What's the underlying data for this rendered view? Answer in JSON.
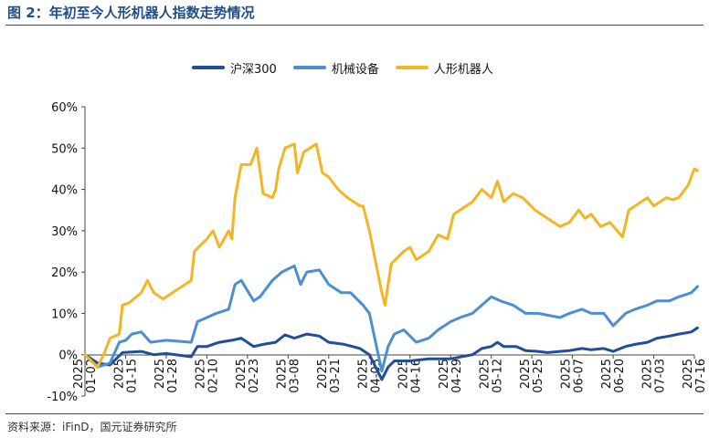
{
  "header": {
    "title": "图 2：年初至今人形机器人指数走势情况"
  },
  "footer": {
    "source": "资料来源：iFinD，国元证券研究所"
  },
  "colors": {
    "title": "#1f4e8c",
    "hs300": "#1f4e9b",
    "machinery": "#4a8fd4",
    "humanoid": "#f2b524"
  },
  "chart_data": {
    "type": "line",
    "ylabel": "",
    "xlabel": "",
    "ylim": [
      -10,
      60
    ],
    "yticks": [
      "60%",
      "50%",
      "40%",
      "30%",
      "20%",
      "10%",
      "0%",
      "-10%"
    ],
    "yticks_values": [
      60,
      50,
      40,
      30,
      20,
      10,
      0,
      -10
    ],
    "xticks": [
      "2025-01-02",
      "2025-01-15",
      "2025-01-28",
      "2025-02-10",
      "2025-02-23",
      "2025-03-08",
      "2025-03-21",
      "2025-04-03",
      "2025-04-16",
      "2025-04-29",
      "2025-05-12",
      "2025-05-25",
      "2025-06-07",
      "2025-06-20",
      "2025-07-03",
      "2025-07-16"
    ],
    "grid": false,
    "legend_position": "top",
    "series": [
      {
        "name": "沪深300",
        "color": "#1f4e9b",
        "points": [
          [
            "2025-01-02",
            0
          ],
          [
            "2025-01-06",
            -2
          ],
          [
            "2025-01-10",
            -2.5
          ],
          [
            "2025-01-14",
            0.5
          ],
          [
            "2025-01-20",
            0.8
          ],
          [
            "2025-01-24",
            0
          ],
          [
            "2025-01-28",
            0.3
          ],
          [
            "2025-02-05",
            -0.5
          ],
          [
            "2025-02-07",
            2
          ],
          [
            "2025-02-10",
            2
          ],
          [
            "2025-02-14",
            3
          ],
          [
            "2025-02-18",
            3.5
          ],
          [
            "2025-02-21",
            4
          ],
          [
            "2025-02-25",
            2
          ],
          [
            "2025-02-28",
            2.5
          ],
          [
            "2025-03-04",
            3
          ],
          [
            "2025-03-07",
            4.8
          ],
          [
            "2025-03-10",
            4
          ],
          [
            "2025-03-14",
            5
          ],
          [
            "2025-03-18",
            4.5
          ],
          [
            "2025-03-21",
            3
          ],
          [
            "2025-03-26",
            2.5
          ],
          [
            "2025-03-31",
            1.5
          ],
          [
            "2025-04-03",
            0
          ],
          [
            "2025-04-07",
            -6
          ],
          [
            "2025-04-09",
            -3
          ],
          [
            "2025-04-11",
            -1.5
          ],
          [
            "2025-04-16",
            -1.5
          ],
          [
            "2025-04-22",
            -1
          ],
          [
            "2025-04-29",
            -1
          ],
          [
            "2025-05-06",
            0
          ],
          [
            "2025-05-09",
            1.5
          ],
          [
            "2025-05-12",
            2
          ],
          [
            "2025-05-14",
            3
          ],
          [
            "2025-05-16",
            2
          ],
          [
            "2025-05-20",
            2
          ],
          [
            "2025-05-23",
            1
          ],
          [
            "2025-05-27",
            0.8
          ],
          [
            "2025-05-30",
            0.5
          ],
          [
            "2025-06-03",
            0.8
          ],
          [
            "2025-06-06",
            1
          ],
          [
            "2025-06-10",
            1.5
          ],
          [
            "2025-06-13",
            1.2
          ],
          [
            "2025-06-17",
            1.5
          ],
          [
            "2025-06-20",
            0.8
          ],
          [
            "2025-06-24",
            2
          ],
          [
            "2025-06-27",
            2.5
          ],
          [
            "2025-07-01",
            3
          ],
          [
            "2025-07-04",
            4
          ],
          [
            "2025-07-08",
            4.5
          ],
          [
            "2025-07-11",
            5
          ],
          [
            "2025-07-15",
            5.5
          ],
          [
            "2025-07-17",
            6.5
          ]
        ]
      },
      {
        "name": "机械设备",
        "color": "#4a8fd4",
        "points": [
          [
            "2025-01-02",
            0
          ],
          [
            "2025-01-06",
            -3
          ],
          [
            "2025-01-10",
            -2
          ],
          [
            "2025-01-13",
            3
          ],
          [
            "2025-01-15",
            3.5
          ],
          [
            "2025-01-17",
            5
          ],
          [
            "2025-01-20",
            5.5
          ],
          [
            "2025-01-23",
            3
          ],
          [
            "2025-01-28",
            3.5
          ],
          [
            "2025-02-05",
            3
          ],
          [
            "2025-02-07",
            8
          ],
          [
            "2025-02-10",
            9
          ],
          [
            "2025-02-13",
            10
          ],
          [
            "2025-02-17",
            11
          ],
          [
            "2025-02-19",
            17
          ],
          [
            "2025-02-21",
            18
          ],
          [
            "2025-02-25",
            13
          ],
          [
            "2025-02-27",
            14
          ],
          [
            "2025-03-03",
            18
          ],
          [
            "2025-03-06",
            20
          ],
          [
            "2025-03-10",
            21.5
          ],
          [
            "2025-03-12",
            17
          ],
          [
            "2025-03-14",
            20
          ],
          [
            "2025-03-18",
            20.5
          ],
          [
            "2025-03-21",
            17
          ],
          [
            "2025-03-25",
            15
          ],
          [
            "2025-03-28",
            15
          ],
          [
            "2025-04-01",
            12
          ],
          [
            "2025-04-03",
            10
          ],
          [
            "2025-04-07",
            -4
          ],
          [
            "2025-04-09",
            2
          ],
          [
            "2025-04-11",
            5
          ],
          [
            "2025-04-14",
            6
          ],
          [
            "2025-04-18",
            3
          ],
          [
            "2025-04-22",
            4
          ],
          [
            "2025-04-25",
            6
          ],
          [
            "2025-04-29",
            8
          ],
          [
            "2025-05-02",
            9
          ],
          [
            "2025-05-06",
            10
          ],
          [
            "2025-05-09",
            12
          ],
          [
            "2025-05-12",
            14
          ],
          [
            "2025-05-15",
            13
          ],
          [
            "2025-05-19",
            12
          ],
          [
            "2025-05-23",
            10
          ],
          [
            "2025-05-27",
            10
          ],
          [
            "2025-06-03",
            9
          ],
          [
            "2025-06-06",
            10
          ],
          [
            "2025-06-10",
            11
          ],
          [
            "2025-06-13",
            10
          ],
          [
            "2025-06-17",
            10
          ],
          [
            "2025-06-20",
            7
          ],
          [
            "2025-06-24",
            10
          ],
          [
            "2025-06-27",
            11
          ],
          [
            "2025-07-01",
            12
          ],
          [
            "2025-07-04",
            13
          ],
          [
            "2025-07-08",
            13
          ],
          [
            "2025-07-11",
            14
          ],
          [
            "2025-07-15",
            15
          ],
          [
            "2025-07-17",
            16.5
          ]
        ]
      },
      {
        "name": "人形机器人",
        "color": "#f2b524",
        "points": [
          [
            "2025-01-02",
            0
          ],
          [
            "2025-01-06",
            -3
          ],
          [
            "2025-01-08",
            0
          ],
          [
            "2025-01-10",
            4
          ],
          [
            "2025-01-13",
            5
          ],
          [
            "2025-01-14",
            12
          ],
          [
            "2025-01-16",
            12.5
          ],
          [
            "2025-01-20",
            15
          ],
          [
            "2025-01-22",
            18
          ],
          [
            "2025-01-24",
            15
          ],
          [
            "2025-01-27",
            13.5
          ],
          [
            "2025-02-05",
            18
          ],
          [
            "2025-02-06",
            25
          ],
          [
            "2025-02-10",
            28
          ],
          [
            "2025-02-12",
            30
          ],
          [
            "2025-02-14",
            26
          ],
          [
            "2025-02-17",
            30
          ],
          [
            "2025-02-18",
            28
          ],
          [
            "2025-02-19",
            38
          ],
          [
            "2025-02-21",
            46
          ],
          [
            "2025-02-24",
            46
          ],
          [
            "2025-02-26",
            50
          ],
          [
            "2025-02-28",
            39
          ],
          [
            "2025-03-03",
            38
          ],
          [
            "2025-03-04",
            40
          ],
          [
            "2025-03-05",
            45
          ],
          [
            "2025-03-07",
            50
          ],
          [
            "2025-03-10",
            51
          ],
          [
            "2025-03-11",
            44
          ],
          [
            "2025-03-13",
            49
          ],
          [
            "2025-03-17",
            51
          ],
          [
            "2025-03-19",
            44
          ],
          [
            "2025-03-21",
            43
          ],
          [
            "2025-03-24",
            40
          ],
          [
            "2025-03-27",
            38
          ],
          [
            "2025-03-31",
            36
          ],
          [
            "2025-04-01",
            36
          ],
          [
            "2025-04-03",
            30
          ],
          [
            "2025-04-07",
            15
          ],
          [
            "2025-04-08",
            12
          ],
          [
            "2025-04-10",
            22
          ],
          [
            "2025-04-14",
            25
          ],
          [
            "2025-04-16",
            26
          ],
          [
            "2025-04-18",
            23
          ],
          [
            "2025-04-22",
            25
          ],
          [
            "2025-04-25",
            29
          ],
          [
            "2025-04-28",
            28
          ],
          [
            "2025-04-30",
            34
          ],
          [
            "2025-05-06",
            37
          ],
          [
            "2025-05-09",
            40
          ],
          [
            "2025-05-12",
            38
          ],
          [
            "2025-05-14",
            42
          ],
          [
            "2025-05-16",
            37
          ],
          [
            "2025-05-19",
            39
          ],
          [
            "2025-05-22",
            38
          ],
          [
            "2025-05-26",
            35
          ],
          [
            "2025-05-30",
            33
          ],
          [
            "2025-06-03",
            31
          ],
          [
            "2025-06-06",
            32
          ],
          [
            "2025-06-09",
            35
          ],
          [
            "2025-06-11",
            33
          ],
          [
            "2025-06-13",
            34
          ],
          [
            "2025-06-16",
            31
          ],
          [
            "2025-06-19",
            32
          ],
          [
            "2025-06-23",
            28.5
          ],
          [
            "2025-06-25",
            35
          ],
          [
            "2025-06-27",
            36
          ],
          [
            "2025-07-01",
            38
          ],
          [
            "2025-07-03",
            36
          ],
          [
            "2025-07-07",
            38
          ],
          [
            "2025-07-09",
            37.5
          ],
          [
            "2025-07-11",
            38
          ],
          [
            "2025-07-14",
            41
          ],
          [
            "2025-07-16",
            45
          ],
          [
            "2025-07-17",
            44.5
          ]
        ]
      }
    ]
  }
}
